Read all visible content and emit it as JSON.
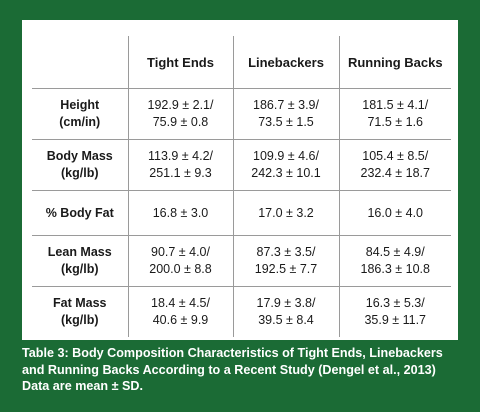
{
  "table": {
    "columns": [
      "",
      "Tight Ends",
      "Linebackers",
      "Running Backs"
    ],
    "rows": [
      {
        "label": [
          "Height",
          "(cm/in)"
        ],
        "cells": [
          [
            "192.9 ± 2.1/",
            "75.9 ± 0.8"
          ],
          [
            "186.7 ± 3.9/",
            "73.5 ± 1.5"
          ],
          [
            "181.5 ± 4.1/",
            "71.5 ± 1.6"
          ]
        ]
      },
      {
        "label": [
          "Body Mass",
          "(kg/lb)"
        ],
        "cells": [
          [
            "113.9 ± 4.2/",
            "251.1 ± 9.3"
          ],
          [
            "109.9 ± 4.6/",
            "242.3 ± 10.1"
          ],
          [
            "105.4 ± 8.5/",
            "232.4 ± 18.7"
          ]
        ]
      },
      {
        "label": [
          "% Body Fat"
        ],
        "cells": [
          [
            "16.8 ± 3.0"
          ],
          [
            "17.0 ± 3.2"
          ],
          [
            "16.0 ± 4.0"
          ]
        ]
      },
      {
        "label": [
          "Lean Mass",
          "(kg/lb)"
        ],
        "cells": [
          [
            "90.7 ± 4.0/",
            "200.0 ± 8.8"
          ],
          [
            "87.3 ± 3.5/",
            "192.5 ± 7.7"
          ],
          [
            "84.5 ± 4.9/",
            "186.3 ± 10.8"
          ]
        ]
      },
      {
        "label": [
          "Fat Mass",
          "(kg/lb)"
        ],
        "cells": [
          [
            "18.4 ± 4.5/",
            "40.6 ± 9.9"
          ],
          [
            "17.9 ± 3.8/",
            "39.5 ± 8.4"
          ],
          [
            "16.3 ± 5.3/",
            "35.9 ± 11.7"
          ]
        ]
      }
    ]
  },
  "caption": {
    "line1": "Table 3: Body Composition Characteristics of Tight Ends, Linebackers",
    "line2": "and Running Backs According to a Recent Study (Dengel et al., 2013)",
    "line3": "Data are mean ± SD."
  },
  "colors": {
    "background": "#1b6b35",
    "panel": "#ffffff",
    "grid": "#9a9a9a"
  }
}
